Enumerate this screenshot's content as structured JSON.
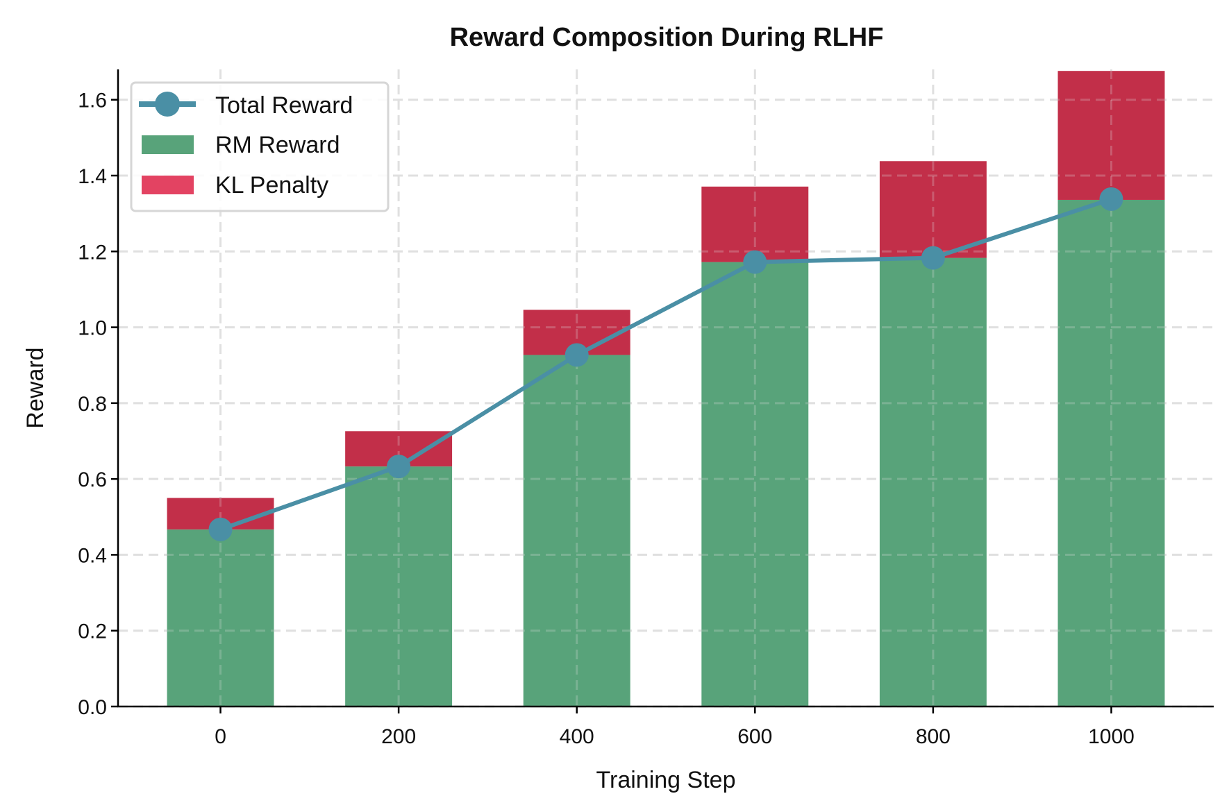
{
  "chart_data": {
    "type": "bar",
    "title": "Reward Composition During RLHF",
    "xlabel": "Training Step",
    "ylabel": "Reward",
    "categories": [
      0,
      200,
      400,
      600,
      800,
      1000
    ],
    "xticks": [
      "0",
      "200",
      "400",
      "600",
      "800",
      "1000"
    ],
    "yticks": [
      "0.0",
      "0.2",
      "0.4",
      "0.6",
      "0.8",
      "1.0",
      "1.2",
      "1.4",
      "1.6"
    ],
    "ylim": [
      0,
      1.68
    ],
    "xlim": [
      -115,
      1115
    ],
    "grid": true,
    "legend_position": "top-left",
    "series": [
      {
        "name": "RM Reward",
        "kind": "bar",
        "color": "#58a37a",
        "values": [
          0.467,
          0.633,
          0.927,
          1.172,
          1.183,
          1.336
        ]
      },
      {
        "name": "KL Penalty",
        "kind": "stacked-bar",
        "color": "#c22f49",
        "legend_color": "#e34362",
        "values": [
          0.083,
          0.093,
          0.119,
          0.199,
          0.255,
          0.34
        ]
      },
      {
        "name": "Total Reward",
        "kind": "line",
        "color": "#4a8fa5",
        "values": [
          0.467,
          0.633,
          0.927,
          1.172,
          1.183,
          1.338
        ]
      }
    ]
  }
}
